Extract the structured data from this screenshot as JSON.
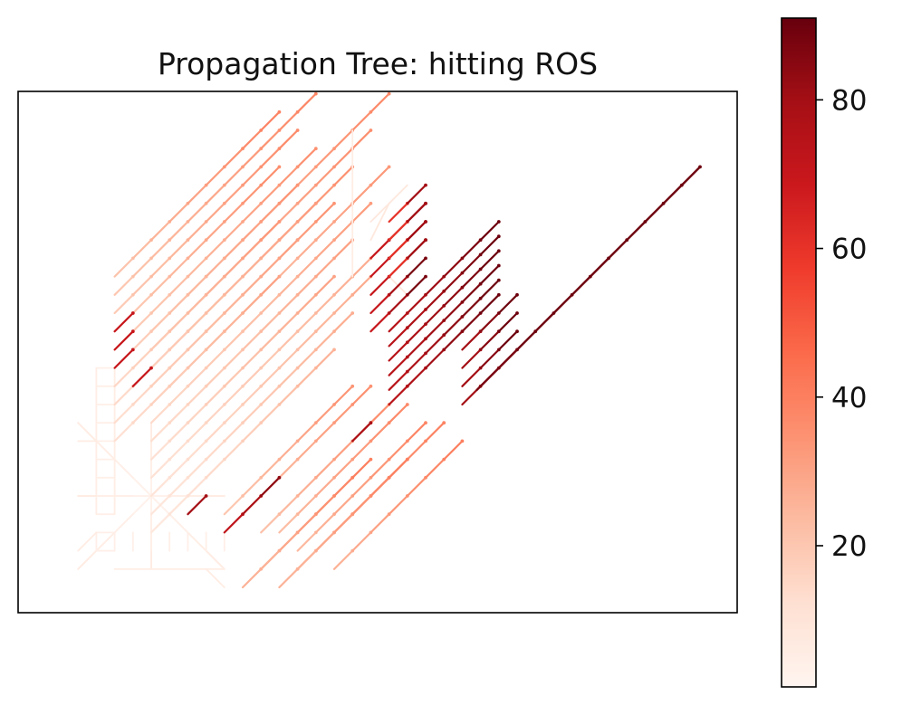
{
  "chart_data": {
    "type": "heatmap",
    "title": "Propagation Tree: hitting ROS",
    "xlabel": "",
    "ylabel": "",
    "axes_ticks_visible": false,
    "colormap": "Reds",
    "colorbar": {
      "ticks": [
        20,
        40,
        60,
        80
      ],
      "tick_labels": [
        "20",
        "40",
        "60",
        "80"
      ],
      "range": [
        1,
        91
      ],
      "placement": "right"
    },
    "grid": false,
    "legend": "none",
    "x": [],
    "y": [],
    "series": []
  },
  "colors": {
    "axes_frame": "#000000",
    "background": "#ffffff",
    "colormap_low": "#fff5f0",
    "colormap_high": "#67000d"
  }
}
